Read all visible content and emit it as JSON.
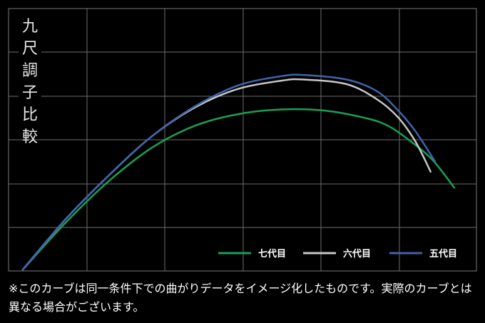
{
  "chart_data": {
    "type": "line",
    "title": "九尺調子比較",
    "xlabel": "",
    "ylabel": "",
    "xlim": [
      0,
      100
    ],
    "ylim": [
      0,
      100
    ],
    "grid": true,
    "legend_position": "bottom-right",
    "series": [
      {
        "name": "七代目",
        "color": "#1aa055",
        "x": [
          0,
          10,
          20,
          30,
          40,
          50,
          60,
          70,
          80,
          85,
          90,
          95,
          100
        ],
        "y": [
          0,
          20.5,
          38.5,
          53,
          62.5,
          67.5,
          69.5,
          69,
          65.5,
          62,
          55.5,
          47.5,
          35.5
        ]
      },
      {
        "name": "六代目",
        "color": "#c7c7c7",
        "x": [
          0,
          10,
          20,
          30,
          40,
          50,
          60,
          65,
          75,
          82,
          87,
          91,
          94.5
        ],
        "y": [
          0,
          22,
          41,
          58,
          70.5,
          78.5,
          82,
          82.5,
          80.5,
          74,
          66,
          55.5,
          42.5
        ]
      },
      {
        "name": "五代目",
        "color": "#3f63ad",
        "x": [
          0,
          10,
          20,
          30,
          40,
          50,
          60,
          65,
          75,
          82,
          87,
          91,
          95.5
        ],
        "y": [
          0,
          22,
          41,
          58,
          71,
          80,
          84,
          84.5,
          82.5,
          77.5,
          69,
          60,
          47
        ]
      }
    ]
  },
  "footnote": "※このカーブは同一条件下での曲がりデータをイメージ化したものです。実際のカーブとは異なる場合がございます。"
}
